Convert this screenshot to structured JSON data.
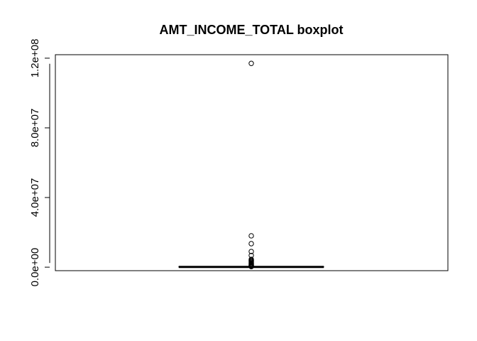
{
  "chart_data": {
    "type": "boxplot",
    "title": "AMT_INCOME_TOTAL boxplot",
    "xlabel": "",
    "ylabel": "",
    "ylim": [
      -2000000,
      122000000
    ],
    "y_ticks": [
      0,
      40000000,
      80000000,
      120000000
    ],
    "y_tick_labels": [
      "0.0e+00",
      "4.0e+07",
      "8.0e+07",
      "1.2e+08"
    ],
    "grid": false,
    "box": {
      "min": 25650,
      "q1": 112500,
      "median": 147150,
      "q3": 202500,
      "max": 337500
    },
    "outliers": [
      117000000,
      18000000,
      13500000,
      9000000,
      6750000,
      4500000,
      4050000,
      3600000,
      3150000,
      2700000,
      2250000,
      1800000,
      1350000,
      1125000,
      900000,
      675000,
      500000,
      360000
    ],
    "colors": {
      "stroke": "#000000",
      "background": "#ffffff"
    }
  }
}
